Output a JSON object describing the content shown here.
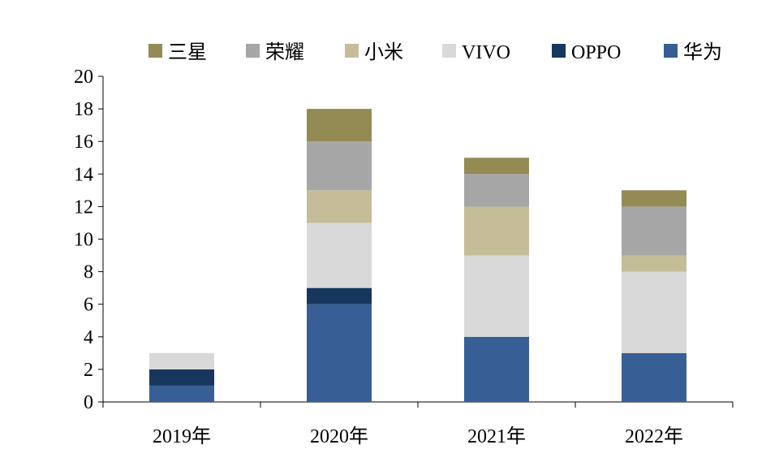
{
  "chart_data": {
    "type": "bar",
    "stacked": true,
    "categories": [
      "2019年",
      "2020年",
      "2021年",
      "2022年"
    ],
    "series": [
      {
        "name": "华为",
        "color": "#375f95",
        "values": [
          1,
          6,
          4,
          3
        ]
      },
      {
        "name": "OPPO",
        "color": "#17375e",
        "values": [
          1,
          1,
          0,
          0
        ]
      },
      {
        "name": "VIVO",
        "color": "#d9d9d9",
        "values": [
          1,
          4,
          5,
          5
        ]
      },
      {
        "name": "小米",
        "color": "#c4bd97",
        "values": [
          0,
          2,
          3,
          1
        ]
      },
      {
        "name": "荣耀",
        "color": "#a6a6a6",
        "values": [
          0,
          3,
          2,
          3
        ]
      },
      {
        "name": "三星",
        "color": "#948a54",
        "values": [
          0,
          2,
          1,
          1
        ]
      }
    ],
    "legend_order": [
      "三星",
      "荣耀",
      "小米",
      "VIVO",
      "OPPO",
      "华为"
    ],
    "yticks": [
      "0",
      "2",
      "4",
      "6",
      "8",
      "10",
      "12",
      "14",
      "16",
      "18",
      "20"
    ],
    "ylim": [
      0,
      20
    ],
    "title": "",
    "xlabel": "",
    "ylabel": "",
    "grid": false,
    "legend_position": "top"
  }
}
